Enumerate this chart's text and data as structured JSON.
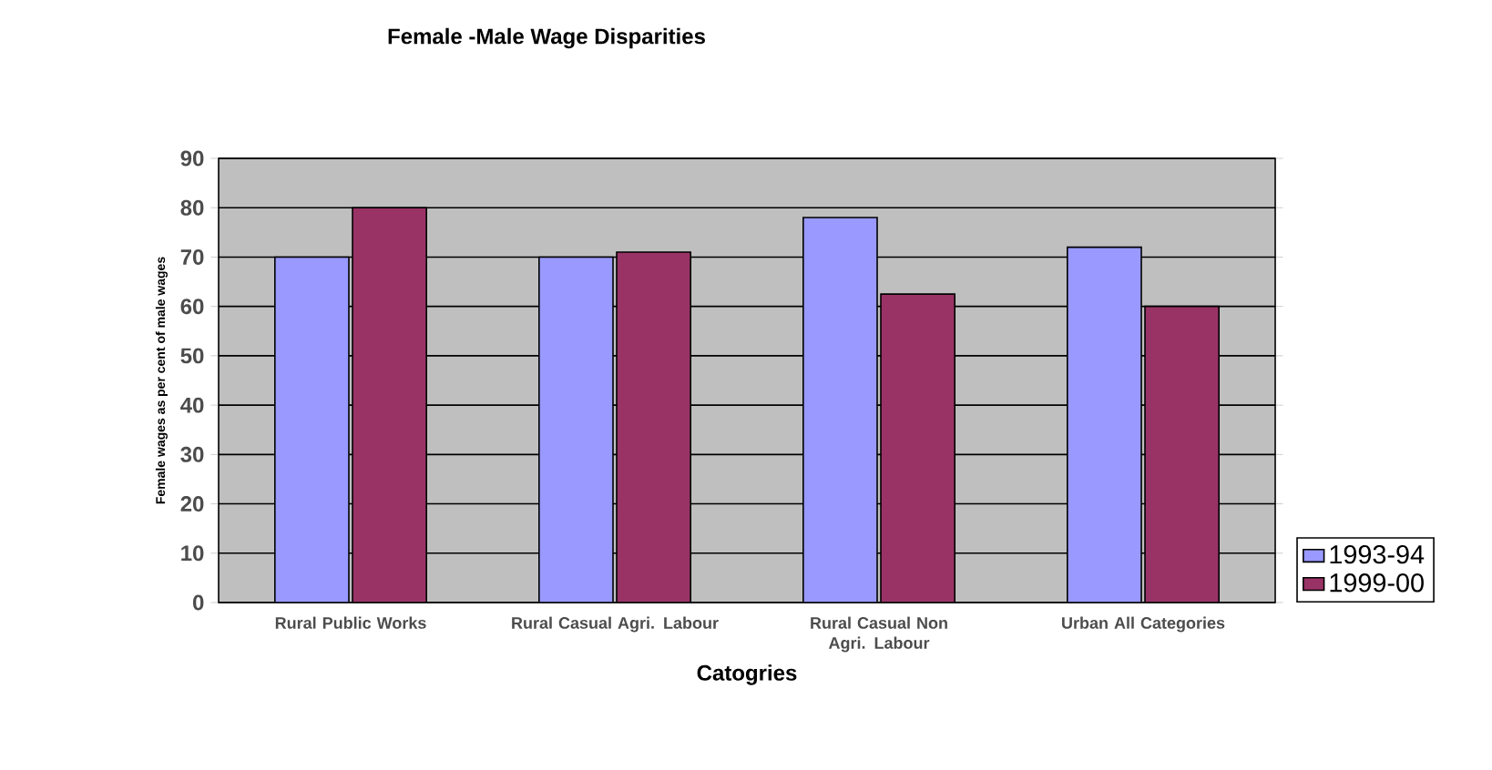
{
  "chart_data": {
    "type": "bar",
    "title": "Female -Male Wage Disparities",
    "xlabel": "Catogries",
    "ylabel": "Female wages as per cent of male wages",
    "categories": [
      "Rural Public Works",
      "Rural Casual Agri. Labour",
      "Rural Casual Non Agri. Labour",
      "Urban All Categories"
    ],
    "series": [
      {
        "name": "1993-94",
        "color": "#9999ff",
        "values": [
          70,
          70,
          78,
          72
        ]
      },
      {
        "name": "1999-00",
        "color": "#993366",
        "values": [
          80,
          71,
          62.5,
          60
        ]
      }
    ],
    "ylim": [
      0,
      90
    ],
    "yticks": [
      0,
      10,
      20,
      30,
      40,
      50,
      60,
      70,
      80,
      90
    ],
    "grid": "y",
    "legend": "bottom right"
  }
}
